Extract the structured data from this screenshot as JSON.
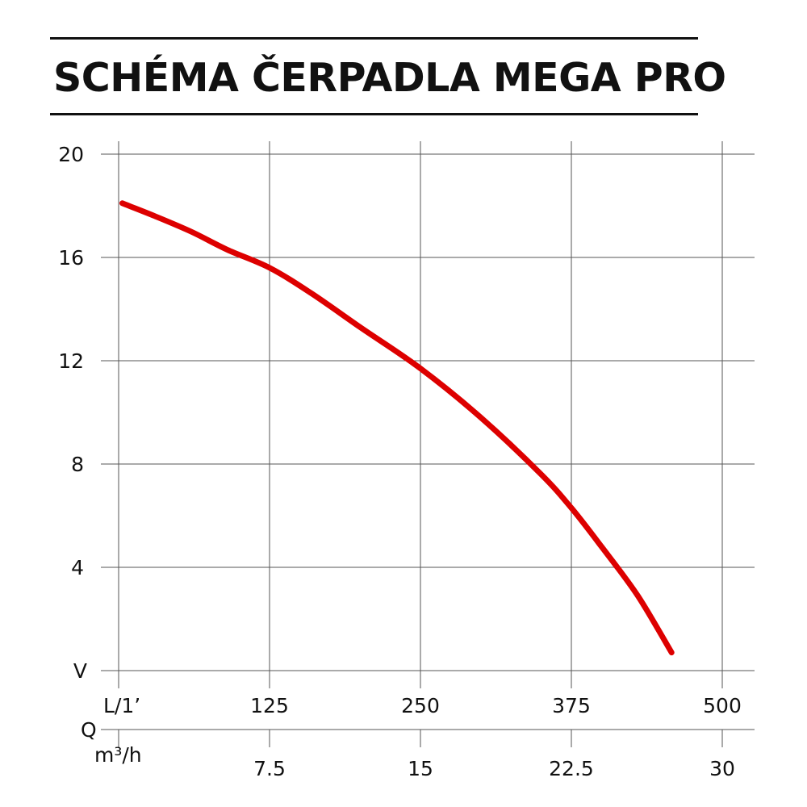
{
  "chart_data": {
    "type": "line",
    "title": "SCHÉMA ČERPADLA MEGA PRO",
    "y_axis": {
      "ticks": [
        20,
        16,
        12,
        8,
        4
      ],
      "base_label": "V",
      "ylim": [
        0,
        20
      ]
    },
    "x_axis": {
      "flow_label": "L/1’",
      "flow_ticks": [
        125,
        250,
        375,
        500
      ],
      "quantity_label": "Q",
      "unit_label": "m³/h",
      "unit_ticks": [
        7.5,
        15,
        22.5,
        30
      ],
      "xlim": [
        0,
        500
      ]
    },
    "grid": true,
    "series": [
      {
        "color": "#dd0000",
        "points": [
          [
            3,
            18.1
          ],
          [
            30,
            17.6
          ],
          [
            60,
            17.0
          ],
          [
            90,
            16.3
          ],
          [
            125,
            15.6
          ],
          [
            160,
            14.6
          ],
          [
            200,
            13.3
          ],
          [
            250,
            11.7
          ],
          [
            300,
            9.8
          ],
          [
            350,
            7.6
          ],
          [
            375,
            6.3
          ],
          [
            400,
            4.8
          ],
          [
            430,
            2.9
          ],
          [
            458,
            0.7
          ]
        ]
      }
    ]
  }
}
